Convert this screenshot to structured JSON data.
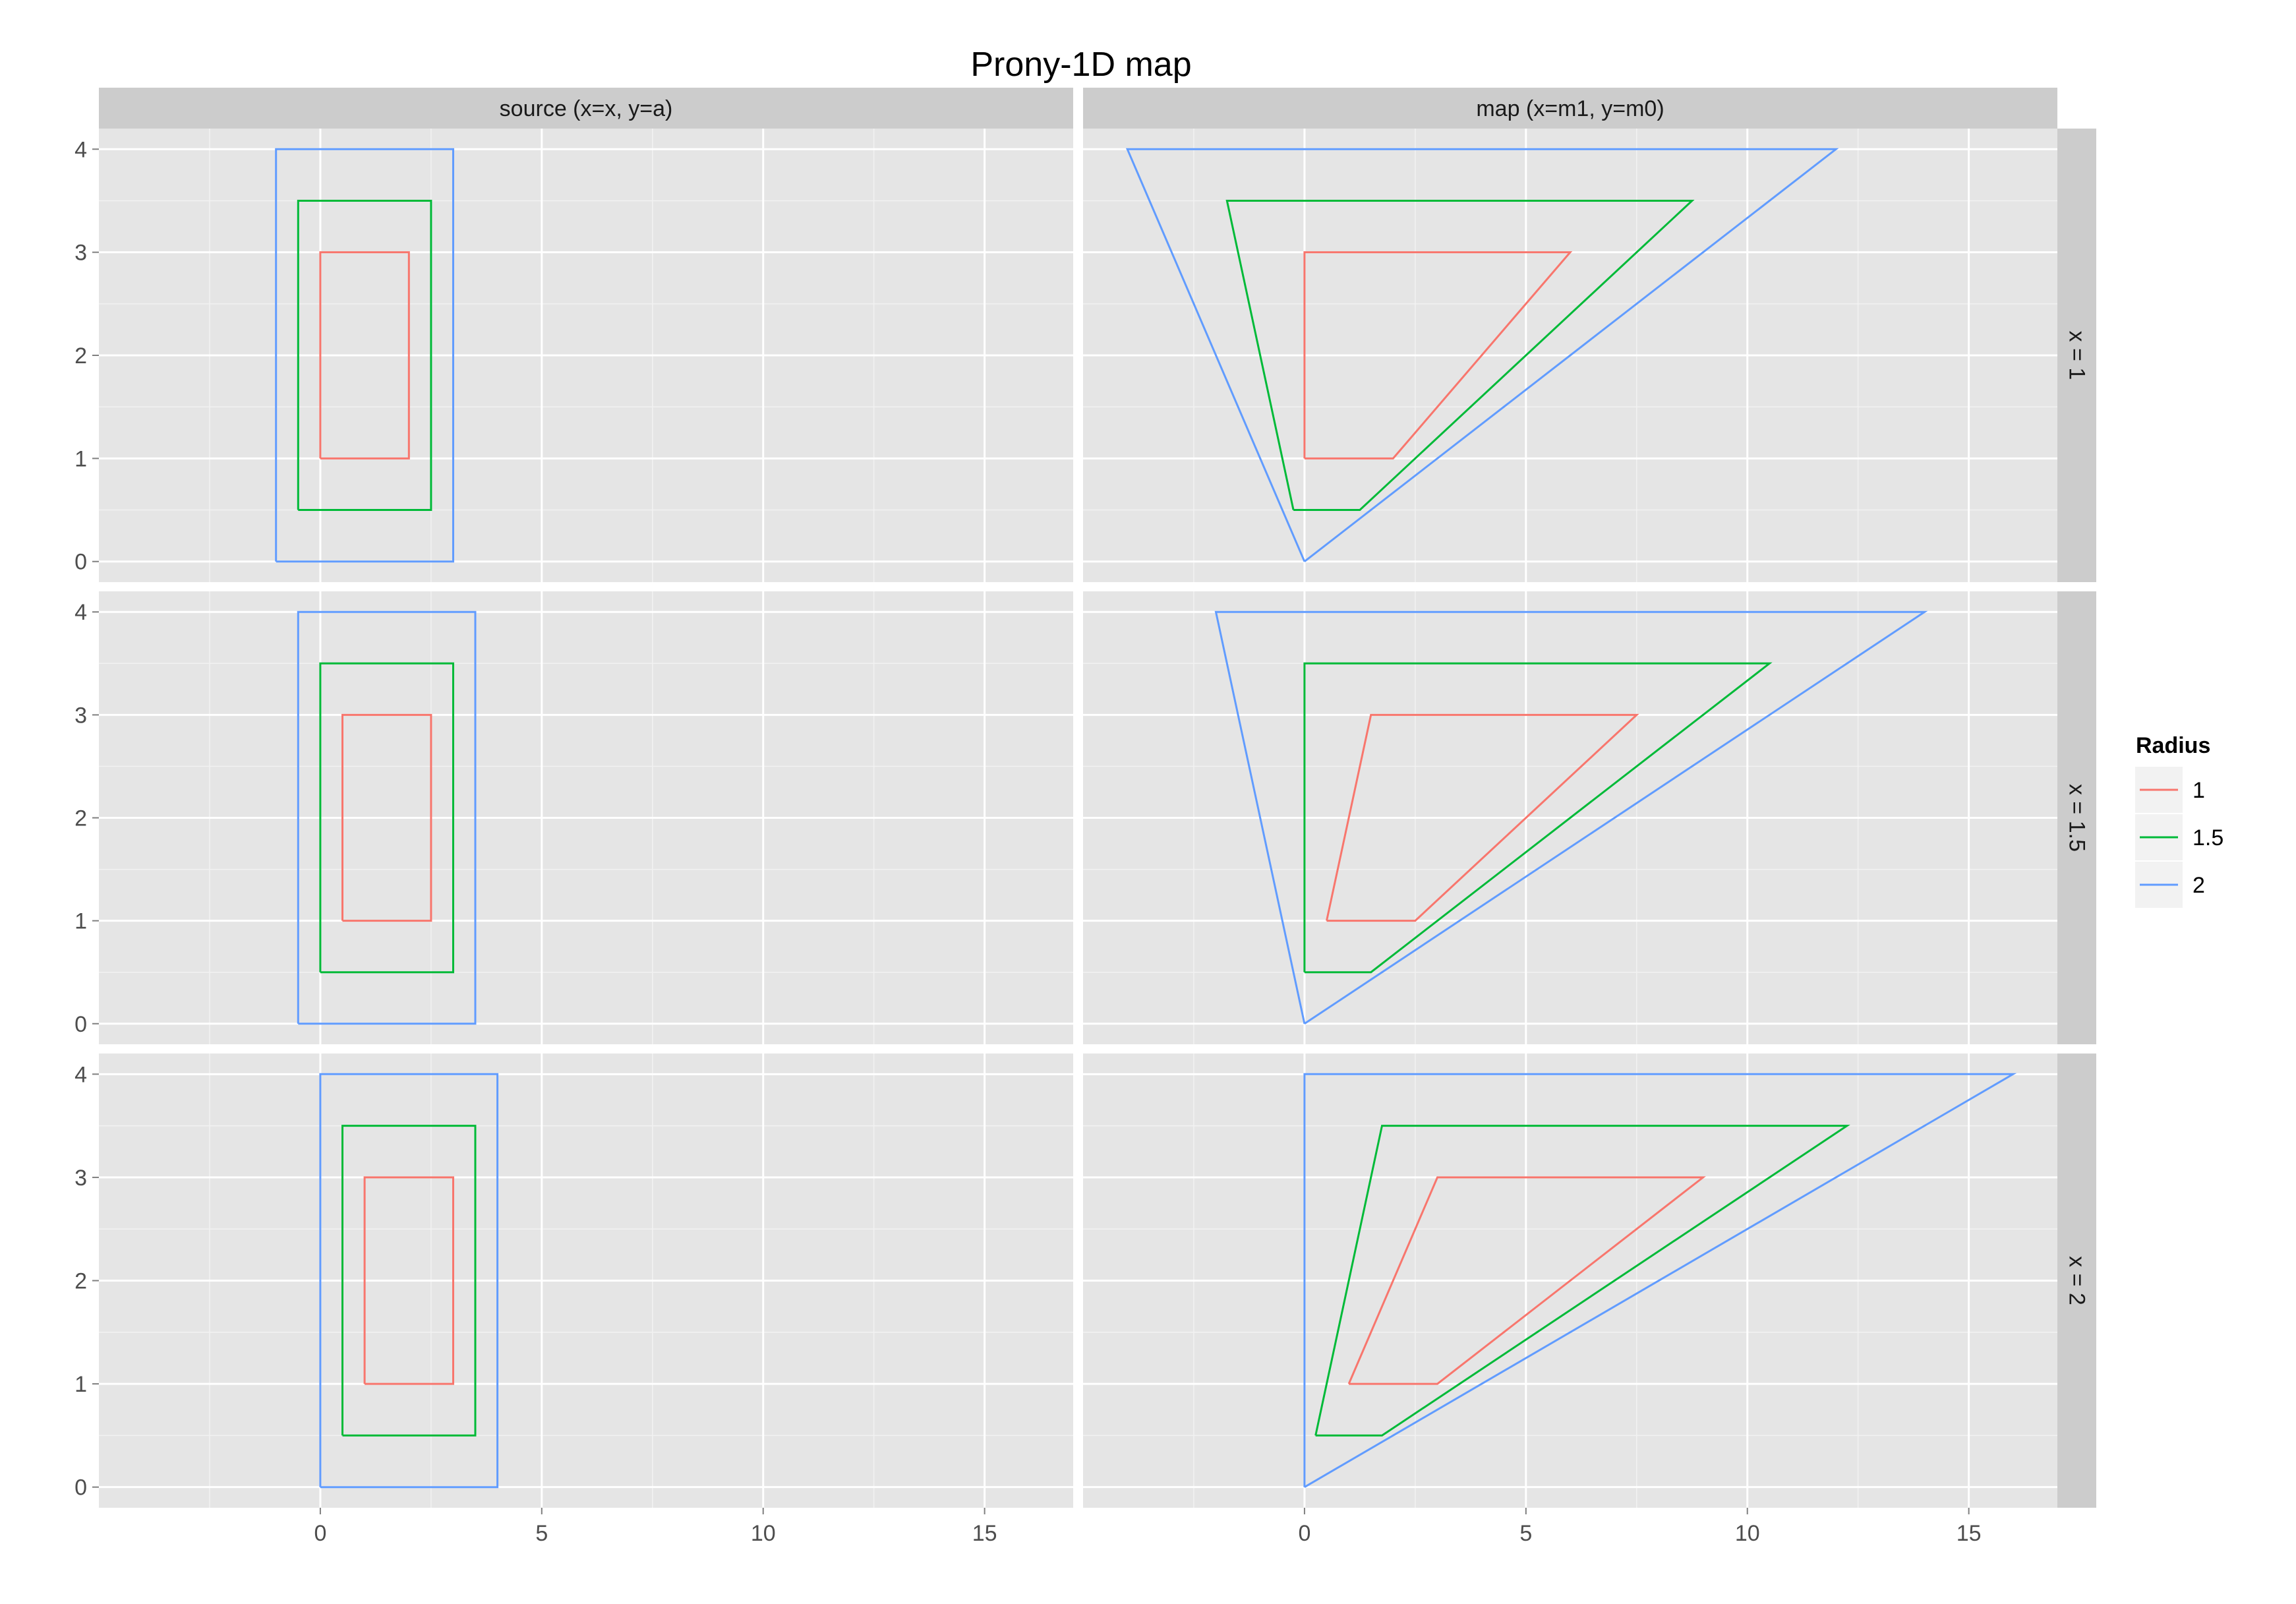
{
  "chart_data": {
    "type": "line",
    "title": "Prony-1D map",
    "xlabel": "",
    "ylabel": "",
    "columns": [
      "source (x=x, y=a)",
      "map (x=m1, y=m0)"
    ],
    "rows": [
      "x = 1",
      "x = 1.5",
      "x = 2"
    ],
    "xlim": [
      -5,
      17
    ],
    "ylim": [
      -0.2,
      4.2
    ],
    "x_ticks": [
      0,
      5,
      10,
      15
    ],
    "y_ticks": [
      0,
      1,
      2,
      3,
      4
    ],
    "grid": true,
    "legend": {
      "title": "Radius",
      "position": "right",
      "entries": [
        {
          "label": "1",
          "color": "#F8766D"
        },
        {
          "label": "1.5",
          "color": "#00BA38"
        },
        {
          "label": "2",
          "color": "#619CFF"
        }
      ]
    },
    "panels": [
      {
        "row": "x = 1",
        "column": "source (x=x, y=a)",
        "series": [
          {
            "name": "1",
            "points": [
              [
                0,
                1
              ],
              [
                2,
                1
              ],
              [
                2,
                3
              ],
              [
                0,
                3
              ],
              [
                0,
                1
              ]
            ]
          },
          {
            "name": "1.5",
            "points": [
              [
                -0.5,
                0.5
              ],
              [
                2.5,
                0.5
              ],
              [
                2.5,
                3.5
              ],
              [
                -0.5,
                3.5
              ],
              [
                -0.5,
                0.5
              ]
            ]
          },
          {
            "name": "2",
            "points": [
              [
                -1,
                0
              ],
              [
                3,
                0
              ],
              [
                3,
                4
              ],
              [
                -1,
                4
              ],
              [
                -1,
                0
              ]
            ]
          }
        ]
      },
      {
        "row": "x = 1",
        "column": "map (x=m1, y=m0)",
        "series": [
          {
            "name": "1",
            "points": [
              [
                0,
                1
              ],
              [
                2,
                1
              ],
              [
                6,
                3
              ],
              [
                0,
                3
              ],
              [
                0,
                1
              ]
            ]
          },
          {
            "name": "1.5",
            "points": [
              [
                -0.25,
                0.5
              ],
              [
                1.25,
                0.5
              ],
              [
                8.75,
                3.5
              ],
              [
                -1.75,
                3.5
              ],
              [
                -0.25,
                0.5
              ]
            ]
          },
          {
            "name": "2",
            "points": [
              [
                0,
                0
              ],
              [
                12,
                4
              ],
              [
                -4,
                4
              ],
              [
                0,
                0
              ]
            ]
          }
        ]
      },
      {
        "row": "x = 1.5",
        "column": "source (x=x, y=a)",
        "series": [
          {
            "name": "1",
            "points": [
              [
                0.5,
                1
              ],
              [
                2.5,
                1
              ],
              [
                2.5,
                3
              ],
              [
                0.5,
                3
              ],
              [
                0.5,
                1
              ]
            ]
          },
          {
            "name": "1.5",
            "points": [
              [
                0,
                0.5
              ],
              [
                3,
                0.5
              ],
              [
                3,
                3.5
              ],
              [
                0,
                3.5
              ],
              [
                0,
                0.5
              ]
            ]
          },
          {
            "name": "2",
            "points": [
              [
                -0.5,
                0
              ],
              [
                3.5,
                0
              ],
              [
                3.5,
                4
              ],
              [
                -0.5,
                4
              ],
              [
                -0.5,
                0
              ]
            ]
          }
        ]
      },
      {
        "row": "x = 1.5",
        "column": "map (x=m1, y=m0)",
        "series": [
          {
            "name": "1",
            "points": [
              [
                0.5,
                1
              ],
              [
                2.5,
                1
              ],
              [
                7.5,
                3
              ],
              [
                1.5,
                3
              ],
              [
                0.5,
                1
              ]
            ]
          },
          {
            "name": "1.5",
            "points": [
              [
                0,
                0.5
              ],
              [
                1.5,
                0.5
              ],
              [
                10.5,
                3.5
              ],
              [
                0,
                3.5
              ],
              [
                0,
                0.5
              ]
            ]
          },
          {
            "name": "2",
            "points": [
              [
                0,
                0
              ],
              [
                14,
                4
              ],
              [
                -2,
                4
              ],
              [
                0,
                0
              ]
            ]
          }
        ]
      },
      {
        "row": "x = 2",
        "column": "source (x=x, y=a)",
        "series": [
          {
            "name": "1",
            "points": [
              [
                1,
                1
              ],
              [
                3,
                1
              ],
              [
                3,
                3
              ],
              [
                1,
                3
              ],
              [
                1,
                1
              ]
            ]
          },
          {
            "name": "1.5",
            "points": [
              [
                0.5,
                0.5
              ],
              [
                3.5,
                0.5
              ],
              [
                3.5,
                3.5
              ],
              [
                0.5,
                3.5
              ],
              [
                0.5,
                0.5
              ]
            ]
          },
          {
            "name": "2",
            "points": [
              [
                0,
                0
              ],
              [
                4,
                0
              ],
              [
                4,
                4
              ],
              [
                0,
                4
              ],
              [
                0,
                0
              ]
            ]
          }
        ]
      },
      {
        "row": "x = 2",
        "column": "map (x=m1, y=m0)",
        "series": [
          {
            "name": "1",
            "points": [
              [
                1,
                1
              ],
              [
                3,
                1
              ],
              [
                9,
                3
              ],
              [
                3,
                3
              ],
              [
                1,
                1
              ]
            ]
          },
          {
            "name": "1.5",
            "points": [
              [
                0.25,
                0.5
              ],
              [
                1.75,
                0.5
              ],
              [
                12.25,
                3.5
              ],
              [
                1.75,
                3.5
              ],
              [
                0.25,
                0.5
              ]
            ]
          },
          {
            "name": "2",
            "points": [
              [
                0,
                0
              ],
              [
                16,
                4
              ],
              [
                0,
                4
              ],
              [
                0,
                0
              ]
            ]
          }
        ]
      }
    ]
  }
}
